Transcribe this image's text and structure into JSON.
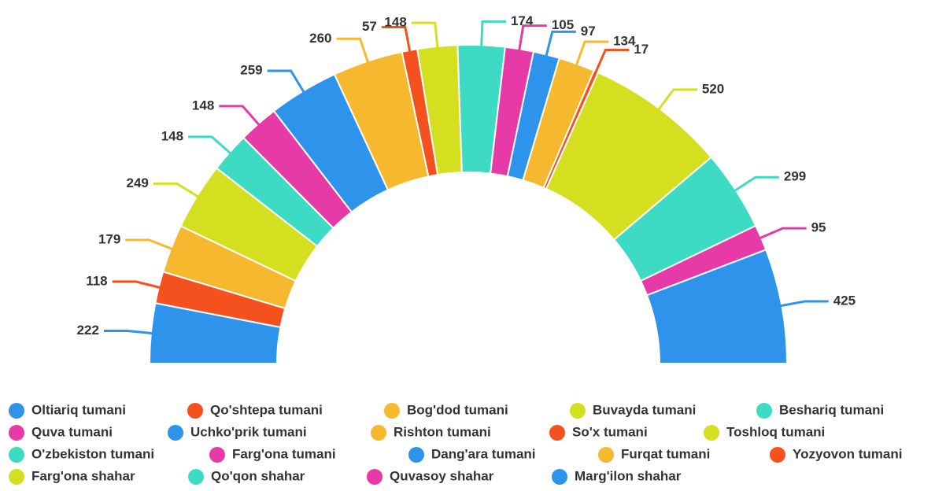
{
  "chart_data": {
    "type": "semi-donut",
    "categories": [
      "Oltiariq tumani",
      "Qo'shtepa tumani",
      "Bog'dod tumani",
      "Buvayda tumani",
      "Beshariq tumani",
      "Quva tumani",
      "Uchko'prik tumani",
      "Rishton tumani",
      "So'x tumani",
      "Toshloq tumani",
      "O'zbekiston tumani",
      "Farg'ona tumani",
      "Dang'ara tumani",
      "Furqat tumani",
      "Yozyovon tumani",
      "Farg'ona shahar",
      "Qo'qon shahar",
      "Quvasoy shahar",
      "Marg'ilon shahar"
    ],
    "values": [
      222,
      118,
      179,
      249,
      148,
      148,
      259,
      260,
      57,
      148,
      174,
      105,
      97,
      134,
      17,
      520,
      299,
      95,
      425
    ],
    "colors": [
      "#2e93ea",
      "#f4511e",
      "#f6b82e",
      "#d4df1f",
      "#3ddbc4",
      "#e63aa6",
      "#2e93ea",
      "#f6b82e",
      "#f4511e",
      "#d4df1f",
      "#3ddbc4",
      "#e63aa6",
      "#2e93ea",
      "#f6b82e",
      "#f4511e",
      "#d4df1f",
      "#3ddbc4",
      "#e63aa6",
      "#2e93ea"
    ],
    "legend": "bottom"
  }
}
